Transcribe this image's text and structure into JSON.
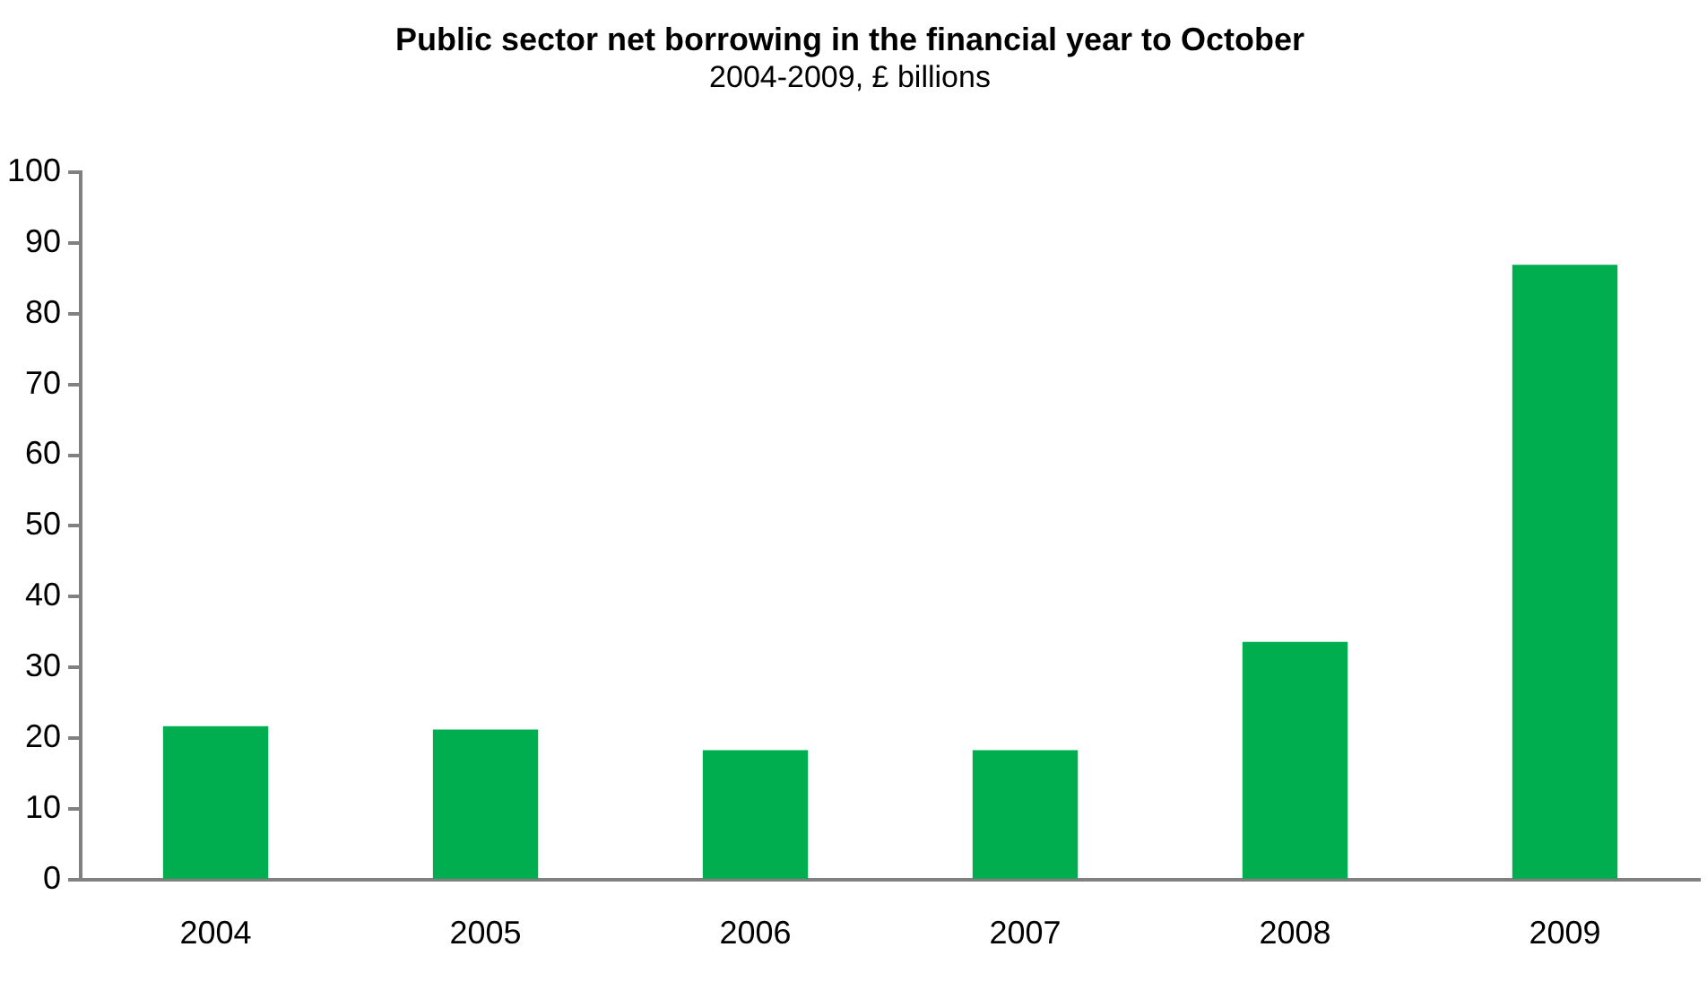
{
  "chart_data": {
    "type": "bar",
    "title": "Public sector net borrowing in the financial year to October",
    "subtitle": "2004-2009, £ billions",
    "categories": [
      "2004",
      "2005",
      "2006",
      "2007",
      "2008",
      "2009"
    ],
    "values": [
      21.7,
      21.2,
      18.3,
      18.3,
      33.6,
      86.9
    ],
    "color": "#00ae50",
    "ylim": [
      0,
      100
    ],
    "yticks": [
      0,
      10,
      20,
      30,
      40,
      50,
      60,
      70,
      80,
      90,
      100
    ],
    "grid": false,
    "legend": false
  }
}
